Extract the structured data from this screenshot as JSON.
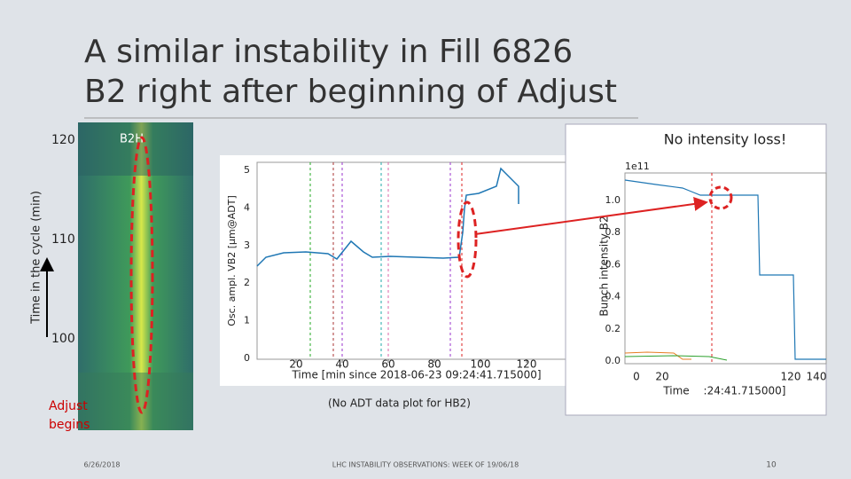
{
  "slide": {
    "title_lines": [
      "A similar instability in Fill 6826",
      "B2 right after beginning of Adjust"
    ],
    "footer": {
      "date": "6/26/2018",
      "center": "LHC INSTABILITY OBSERVATIONS: WEEK OF 19/06/18",
      "page": "10"
    }
  },
  "spectrogram": {
    "label": "B2H",
    "y_axis_label": "Time in the cycle (min)",
    "yticks": [
      120,
      110,
      100
    ],
    "annotation": [
      "Adjust",
      "begins"
    ]
  },
  "osc_plot": {
    "y_label": "Osc. ampl. VB2 [µm@ADT]",
    "x_label": "Time [min since 2018-06-23 09:24:41.715000]",
    "yticks": [
      0,
      1,
      2,
      3,
      4,
      5
    ],
    "xticks": [
      20,
      40,
      60,
      80,
      100,
      120
    ]
  },
  "note": "(No ADT data plot for HB2)",
  "intensity_plot": {
    "callout": "No intensity loss!",
    "scale": "1e11",
    "y_label": "Bunch intensity B2",
    "yticks": [
      "0.0",
      "0.2",
      "0.4",
      "0.6",
      "0.8",
      "1.0"
    ],
    "xticks": [
      0,
      20,
      120,
      140
    ],
    "x_label_parts": [
      "Time",
      ":24:41.715000]"
    ]
  }
}
